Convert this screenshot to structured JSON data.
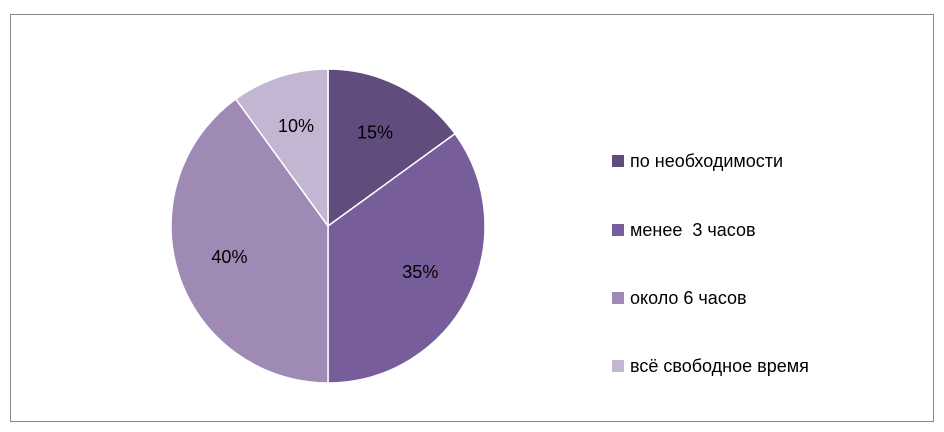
{
  "chart_data": {
    "type": "pie",
    "categories": [
      "по необходимости",
      "менее  3 часов",
      "около 6 часов",
      "всё свободное время"
    ],
    "values": [
      15,
      35,
      40,
      10
    ],
    "value_labels": [
      "15%",
      "35%",
      "40%",
      "10%"
    ],
    "colors": [
      "#614c7e",
      "#775d9a",
      "#9e8ab5",
      "#c3b6d3"
    ],
    "legend": "right"
  }
}
